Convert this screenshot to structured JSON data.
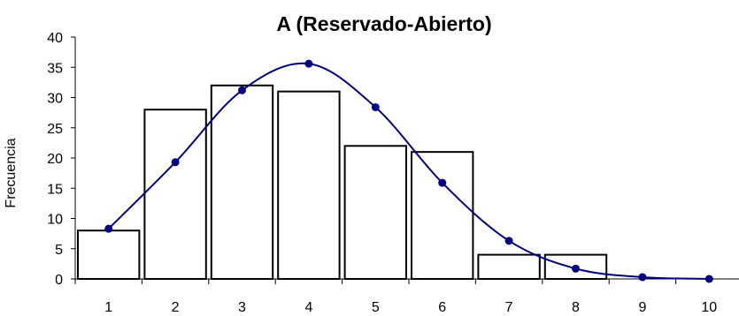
{
  "chart_data": {
    "type": "bar",
    "title": "A (Reservado-Abierto)",
    "xlabel": "",
    "ylabel": "Frecuencia",
    "categories": [
      "1",
      "2",
      "3",
      "4",
      "5",
      "6",
      "7",
      "8",
      "9",
      "10"
    ],
    "ylim": [
      0,
      40
    ],
    "y_ticks": [
      "0",
      "5",
      "10",
      "15",
      "20",
      "25",
      "30",
      "35",
      "40"
    ],
    "grid": false,
    "legend": "none",
    "series": [
      {
        "type": "bar",
        "values": [
          8,
          28,
          32,
          31,
          22,
          21,
          4,
          4,
          null,
          null
        ],
        "fill": "#ffffff",
        "stroke": "#000000"
      },
      {
        "type": "line",
        "smooth": true,
        "values": [
          8.3,
          19.3,
          31.2,
          35.6,
          28.4,
          15.9,
          6.3,
          1.7,
          0.3,
          0.0
        ],
        "color": "#00007f"
      }
    ]
  }
}
